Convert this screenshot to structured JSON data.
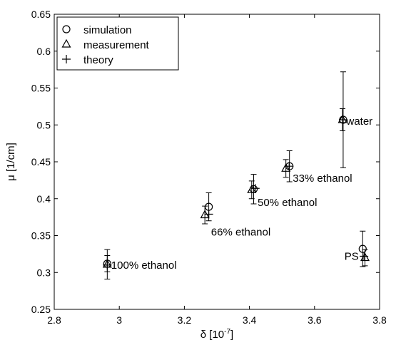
{
  "chart_data": {
    "type": "scatter",
    "xlabel": "δ [10",
    "xlabel_exponent": "-7",
    "xlabel_suffix": "]",
    "ylabel": "μ [1/cm]",
    "xlim": [
      2.8,
      3.8
    ],
    "ylim": [
      0.25,
      0.65
    ],
    "x_ticks": [
      2.8,
      3.0,
      3.2,
      3.4,
      3.6,
      3.8
    ],
    "x_tick_labels": [
      "2.8",
      "3",
      "3.2",
      "3.4",
      "3.6",
      "3.8"
    ],
    "y_ticks": [
      0.25,
      0.3,
      0.35,
      0.4,
      0.45,
      0.5,
      0.55,
      0.6,
      0.65
    ],
    "y_tick_labels": [
      "0.25",
      "0.3",
      "0.35",
      "0.4",
      "0.45",
      "0.5",
      "0.55",
      "0.6",
      "0.65"
    ],
    "grid": false,
    "legend_position": "top-left",
    "series": [
      {
        "name": "simulation",
        "marker": "circle",
        "points": [
          {
            "x": 2.963,
            "y": 0.312,
            "err": 0.011
          },
          {
            "x": 3.275,
            "y": 0.389,
            "err": 0.019
          },
          {
            "x": 3.413,
            "y": 0.413,
            "err": 0.02
          },
          {
            "x": 3.523,
            "y": 0.444,
            "err": 0.021
          },
          {
            "x": 3.688,
            "y": 0.507,
            "err": 0.065
          },
          {
            "x": 3.748,
            "y": 0.332,
            "err": 0.024
          }
        ]
      },
      {
        "name": "measurement",
        "marker": "triangle",
        "points": [
          {
            "x": 2.963,
            "y": 0.311,
            "err": 0.02
          },
          {
            "x": 3.263,
            "y": 0.378,
            "err": 0.012
          },
          {
            "x": 3.407,
            "y": 0.412,
            "err": 0.012
          },
          {
            "x": 3.512,
            "y": 0.441,
            "err": 0.012
          },
          {
            "x": 3.686,
            "y": 0.507,
            "err": 0.015
          },
          {
            "x": 3.755,
            "y": 0.32,
            "err": 0.011
          }
        ]
      },
      {
        "name": "theory",
        "marker": "plus",
        "points": [
          {
            "x": 2.963,
            "y": 0.31
          },
          {
            "x": 3.275,
            "y": 0.379
          },
          {
            "x": 3.418,
            "y": 0.414
          },
          {
            "x": 3.522,
            "y": 0.444
          },
          {
            "x": 3.688,
            "y": 0.507
          },
          {
            "x": 3.752,
            "y": 0.322
          }
        ]
      }
    ],
    "annotations": [
      {
        "text": "100% ethanol",
        "x": 2.975,
        "y": 0.31,
        "anchor": "start"
      },
      {
        "text": "66% ethanol",
        "x": 3.282,
        "y": 0.355,
        "anchor": "start"
      },
      {
        "text": "50% ethanol",
        "x": 3.425,
        "y": 0.395,
        "anchor": "start"
      },
      {
        "text": "33% ethanol",
        "x": 3.533,
        "y": 0.428,
        "anchor": "start"
      },
      {
        "text": "water",
        "x": 3.698,
        "y": 0.505,
        "anchor": "start"
      },
      {
        "text": "PS",
        "x": 3.736,
        "y": 0.322,
        "anchor": "end"
      }
    ]
  }
}
